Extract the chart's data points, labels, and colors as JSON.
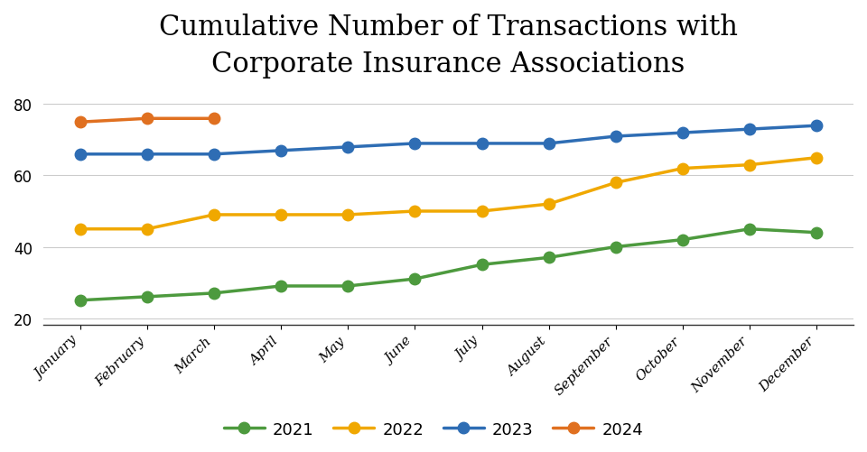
{
  "title": "Cumulative Number of Transactions with\nCorporate Insurance Associations",
  "months": [
    "January",
    "February",
    "March",
    "April",
    "May",
    "June",
    "July",
    "August",
    "September",
    "October",
    "November",
    "December"
  ],
  "series": {
    "2021": {
      "values": [
        25,
        26,
        27,
        29,
        29,
        31,
        35,
        37,
        40,
        42,
        45,
        44
      ],
      "color": "#4d9a3e",
      "label": "2021"
    },
    "2022": {
      "values": [
        45,
        45,
        49,
        49,
        49,
        50,
        50,
        52,
        58,
        62,
        63,
        65
      ],
      "color": "#f0a800",
      "label": "2022"
    },
    "2023": {
      "values": [
        66,
        66,
        66,
        67,
        68,
        69,
        69,
        69,
        71,
        72,
        73,
        74
      ],
      "color": "#2e6db4",
      "label": "2023"
    },
    "2024": {
      "values": [
        75,
        76,
        76,
        null,
        null,
        null,
        null,
        null,
        null,
        null,
        null,
        null
      ],
      "color": "#e07020",
      "label": "2024"
    }
  },
  "ylim": [
    18,
    83
  ],
  "yticks": [
    20,
    40,
    60,
    80
  ],
  "background_color": "#ffffff",
  "title_fontsize": 22,
  "marker": "o",
  "marker_size": 9,
  "linewidth": 2.5,
  "legend_order": [
    "2021",
    "2022",
    "2023",
    "2024"
  ]
}
